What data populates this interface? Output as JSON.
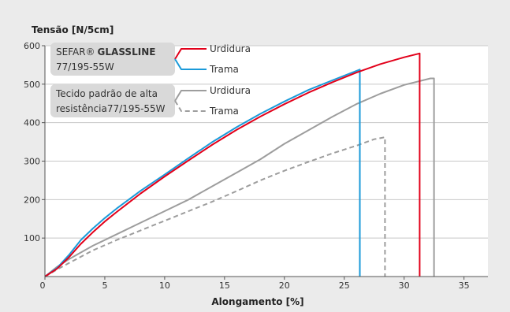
{
  "chart_data": {
    "type": "line",
    "ylabel": "Tensão [N/5cm]",
    "xlabel": "Alongamento [%]",
    "xlim": [
      0,
      37
    ],
    "ylim": [
      0,
      600
    ],
    "x_ticks": [
      "0",
      "5",
      "10",
      "15",
      "20",
      "25",
      "30",
      "35"
    ],
    "y_ticks": [
      "100",
      "200",
      "300",
      "400",
      "500",
      "600"
    ],
    "grid": "horizontal",
    "legend": [
      {
        "group_lines": [
          "SEFAR®",
          "GLASSLINE",
          "77/195-55W"
        ],
        "entries": [
          {
            "label": "Urdidura",
            "series": "glassline_urdidura"
          },
          {
            "label": "Trama",
            "series": "glassline_trama"
          }
        ]
      },
      {
        "group_lines": [
          "Tecido padrão de alta",
          "resistência77/195-55W"
        ],
        "entries": [
          {
            "label": "Urdidura",
            "series": "padrao_urdidura"
          },
          {
            "label": "Trama",
            "series": "padrao_trama"
          }
        ]
      }
    ],
    "series": [
      {
        "id": "glassline_urdidura",
        "color": "#e2001a",
        "style": "solid",
        "x": [
          0,
          1,
          2,
          3,
          4,
          5,
          6,
          8,
          10,
          12,
          14,
          16,
          18,
          20,
          22,
          24,
          26,
          28,
          30,
          31.3,
          31.3
        ],
        "y": [
          0,
          20,
          50,
          85,
          115,
          143,
          168,
          216,
          260,
          302,
          343,
          381,
          416,
          448,
          478,
          505,
          530,
          552,
          570,
          580,
          0
        ]
      },
      {
        "id": "glassline_trama",
        "color": "#1a9ad9",
        "style": "solid",
        "x": [
          0,
          1,
          2,
          3,
          4,
          5,
          6,
          8,
          10,
          12,
          14,
          16,
          18,
          20,
          22,
          24,
          26.3,
          26.3
        ],
        "y": [
          0,
          22,
          56,
          95,
          125,
          152,
          177,
          223,
          265,
          308,
          350,
          388,
          423,
          455,
          485,
          510,
          538,
          0
        ]
      },
      {
        "id": "padrao_urdidura",
        "color": "#9d9d9d",
        "style": "solid",
        "x": [
          0,
          1,
          2,
          4,
          6,
          8,
          10,
          12,
          14,
          16,
          18,
          20,
          22,
          24,
          26,
          28,
          30,
          32.2,
          32.5,
          32.5
        ],
        "y": [
          0,
          25,
          45,
          80,
          110,
          140,
          170,
          200,
          235,
          270,
          305,
          345,
          380,
          415,
          448,
          475,
          498,
          515,
          515,
          0
        ]
      },
      {
        "id": "padrao_trama",
        "color": "#9d9d9d",
        "style": "dashed",
        "x": [
          0,
          1,
          2,
          4,
          6,
          8,
          10,
          12,
          14,
          16,
          18,
          20,
          22,
          24,
          26,
          27.5,
          28.4,
          28.4
        ],
        "y": [
          0,
          18,
          35,
          68,
          95,
          120,
          145,
          170,
          195,
          222,
          250,
          275,
          298,
          320,
          340,
          357,
          362,
          0
        ]
      }
    ]
  }
}
